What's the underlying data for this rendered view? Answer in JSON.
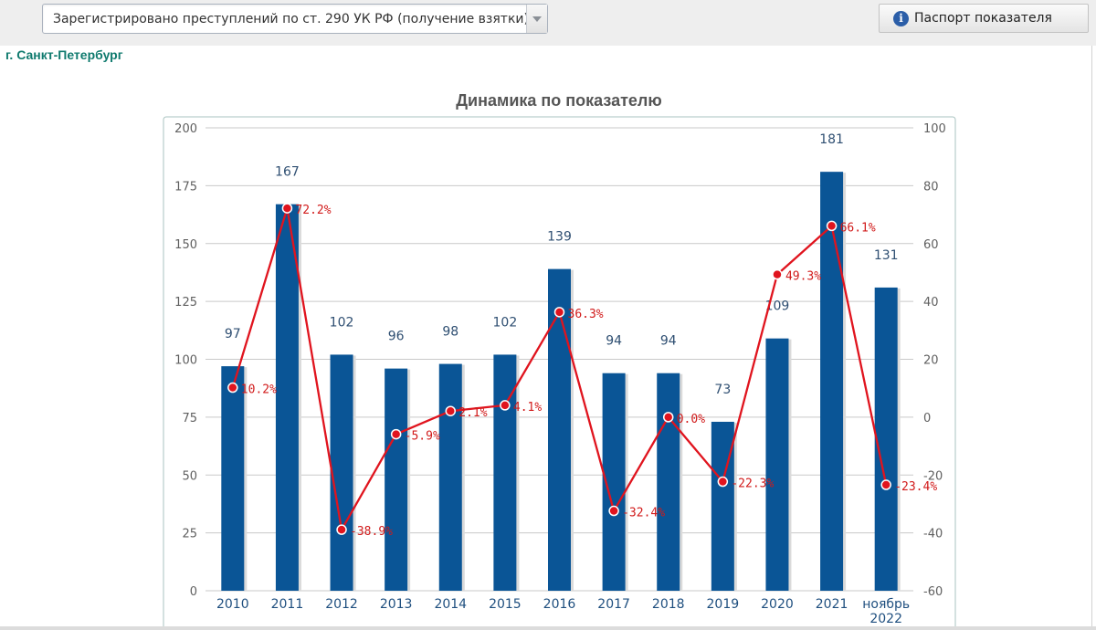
{
  "header": {
    "indicator_select": {
      "value": "Зарегистрировано преступлений по ст. 290 УК РФ (получение взятки)"
    },
    "passport_button": {
      "label": "Паспорт показателя",
      "icon": "info-icon"
    }
  },
  "region": "г. Санкт-Петербург",
  "chart_data": {
    "type": "bar",
    "title": "Динамика по показателю",
    "categories": [
      "2010",
      "2011",
      "2012",
      "2013",
      "2014",
      "2015",
      "2016",
      "2017",
      "2018",
      "2019",
      "2020",
      "2021",
      "ноябрь 2022"
    ],
    "series": [
      {
        "values": [
          97,
          167,
          102,
          96,
          98,
          102,
          139,
          94,
          94,
          73,
          109,
          181,
          131
        ],
        "type": "bar",
        "axis": "left",
        "color": "#0a5596",
        "labels": [
          "97",
          "167",
          "102",
          "96",
          "98",
          "102",
          "139",
          "94",
          "94",
          "73",
          "109",
          "181",
          "131"
        ]
      },
      {
        "values": [
          10.2,
          72.2,
          -38.9,
          -5.9,
          2.1,
          4.1,
          36.3,
          -32.4,
          0.0,
          -22.3,
          49.3,
          66.1,
          -23.4
        ],
        "type": "line",
        "axis": "right",
        "color": "#e0141e",
        "labels": [
          "10.2%",
          "72.2%",
          "-38.9%",
          "-5.9%",
          "2.1%",
          "4.1%",
          "36.3%",
          "-32.4%",
          "0.0%",
          "-22.3%",
          "49.3%",
          "66.1%",
          "-23.4%"
        ]
      }
    ],
    "left_axis": {
      "min": 0,
      "max": 200,
      "ticks": [
        "0",
        "25",
        "50",
        "75",
        "100",
        "125",
        "150",
        "175",
        "200"
      ]
    },
    "right_axis": {
      "min": -60,
      "max": 100,
      "ticks": [
        "-60",
        "-40",
        "-20",
        "0",
        "20",
        "40",
        "60",
        "80",
        "100"
      ]
    },
    "grid": true,
    "legend": false
  }
}
